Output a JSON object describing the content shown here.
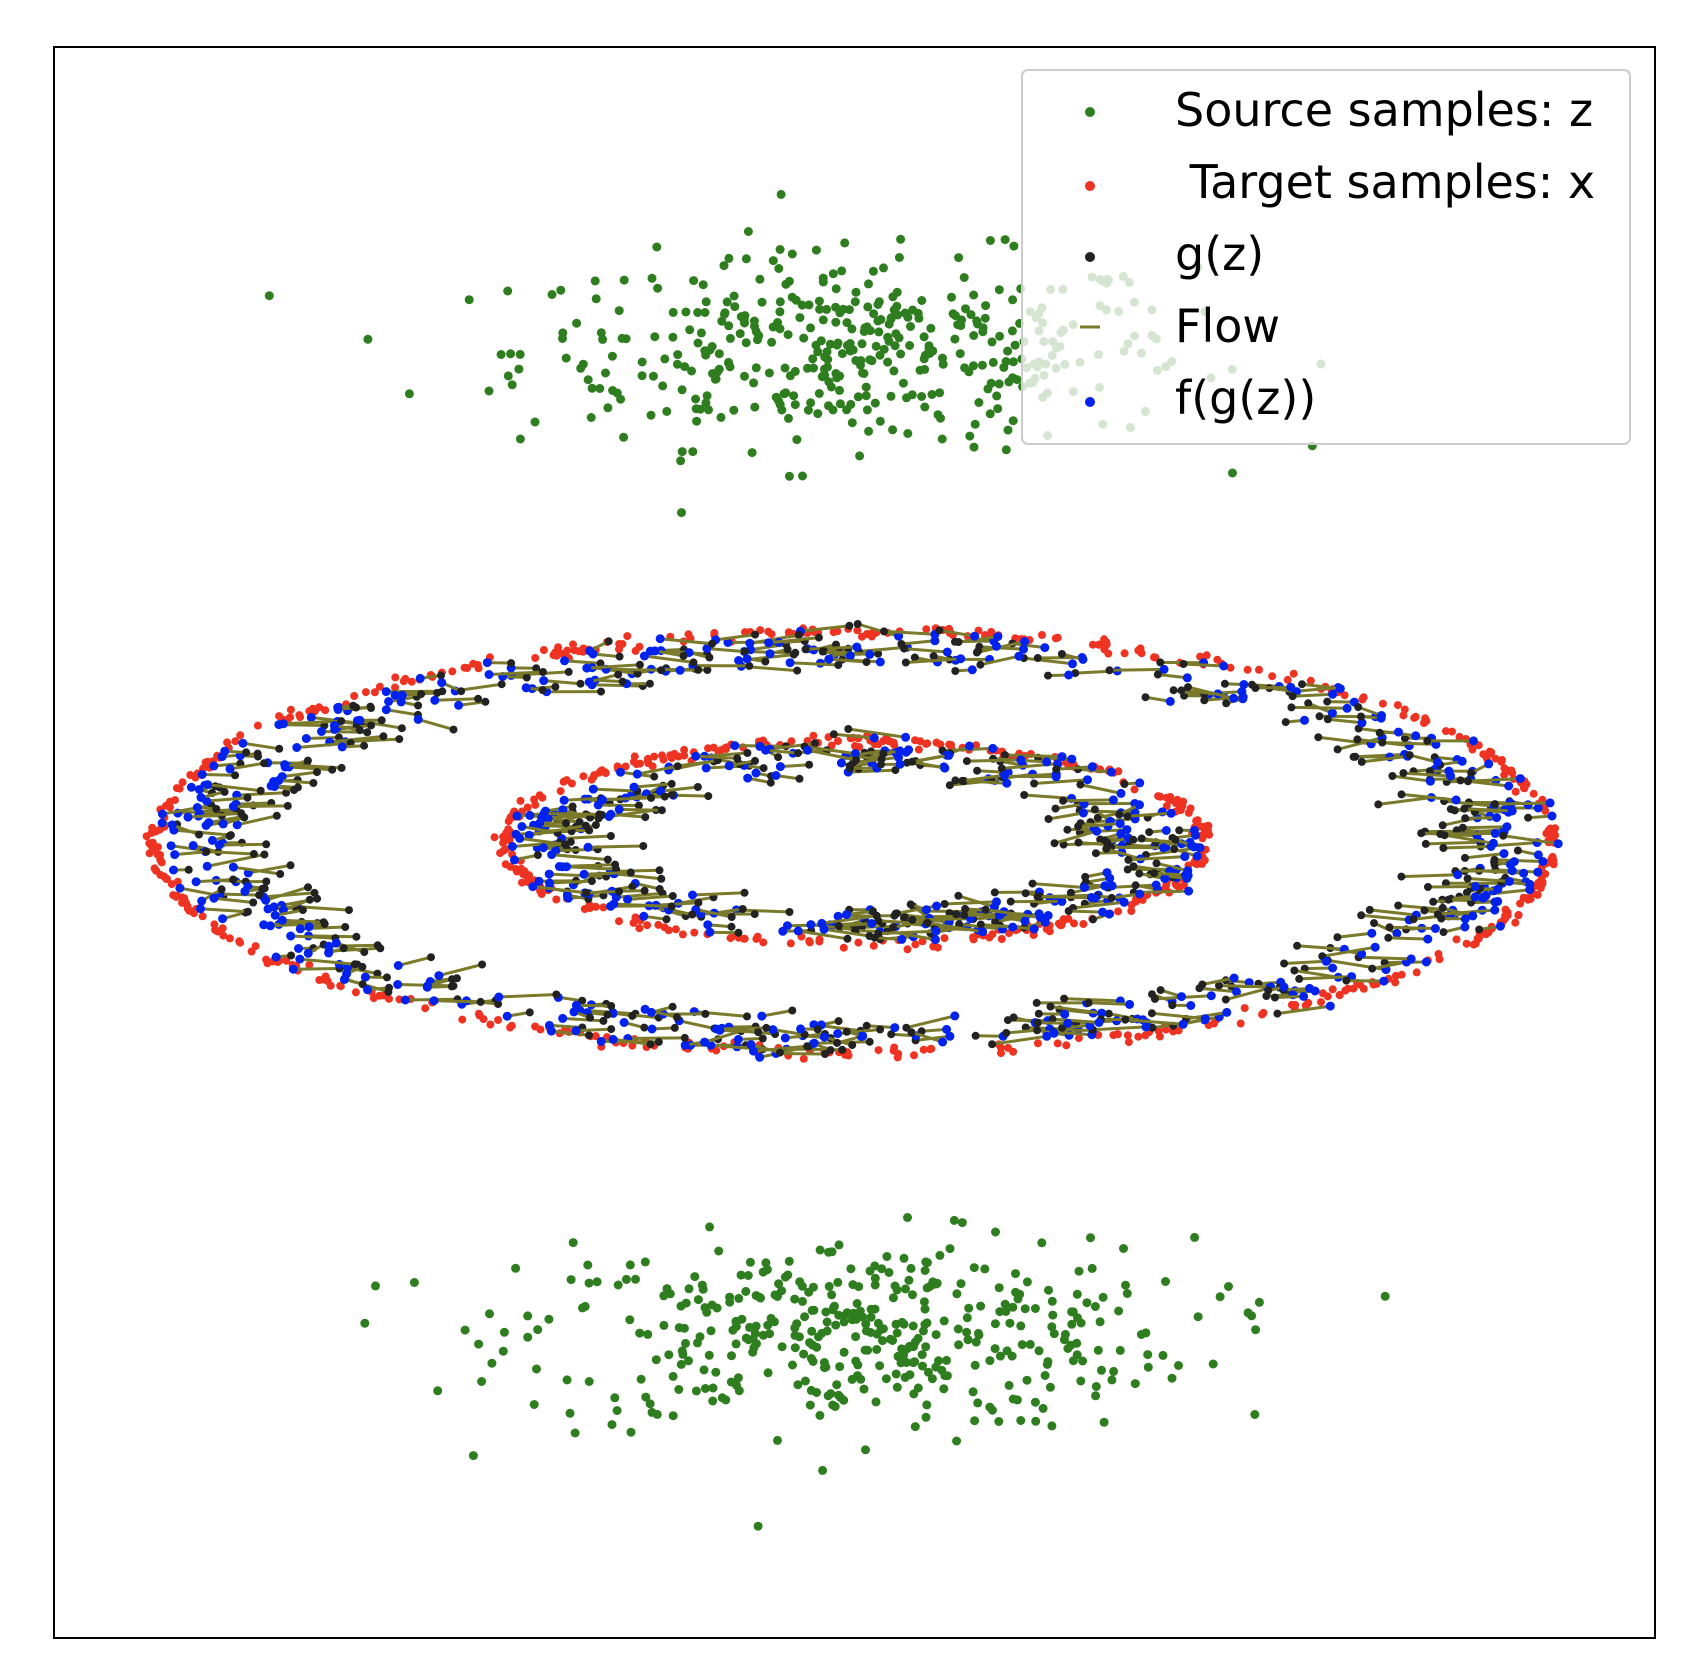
{
  "chart_data": {
    "type": "scatter",
    "title": "",
    "xlabel": "",
    "ylabel": "",
    "axes": {
      "ticks": "hidden",
      "grid": false,
      "xlim": [
        -1.1,
        1.1
      ],
      "ylim": [
        -1.1,
        1.1
      ]
    },
    "legend": {
      "placement": "top-right",
      "entries": [
        {
          "label": "Source samples: z",
          "color": "#2e7d1e",
          "marker": "dot"
        },
        {
          "label": " Target samples: x",
          "color": "#ee3322",
          "marker": "dot"
        },
        {
          "label": "g(z)",
          "color": "#222222",
          "marker": "dot"
        },
        {
          "label": "Flow",
          "color": "#7a7a2a",
          "marker": "line"
        },
        {
          "label": "f(g(z))",
          "color": "#0022ee",
          "marker": "dot"
        }
      ]
    },
    "colors": {
      "source": "#2e7d1e",
      "target": "#ee3322",
      "gz": "#222222",
      "flow": "#7a7a2a",
      "fgz": "#0022ee"
    },
    "series": [
      {
        "name": "Source samples: z",
        "distribution": "two gaussian clusters",
        "clusters": [
          {
            "center": [
              0.0,
              0.68
            ],
            "spread": [
              0.42,
              0.12
            ],
            "count": 430
          },
          {
            "center": [
              0.0,
              -0.68
            ],
            "spread": [
              0.42,
              0.12
            ],
            "count": 430
          }
        ]
      },
      {
        "name": " Target samples: x",
        "distribution": "two concentric ellipses",
        "rings": [
          {
            "center": [
              0.0,
              0.0
            ],
            "radii": [
              0.96,
              0.29
            ],
            "count": 480
          },
          {
            "center": [
              0.0,
              0.0
            ],
            "radii": [
              0.48,
              0.14
            ],
            "count": 320
          }
        ]
      },
      {
        "name": "g(z)",
        "distribution": "points near target rings, displaced outward",
        "count": 700
      },
      {
        "name": "Flow",
        "distribution": "segments from g(z) to f(g(z))",
        "count": 700
      },
      {
        "name": "f(g(z))",
        "distribution": "points on rings, slightly offset",
        "count": 700
      }
    ]
  }
}
